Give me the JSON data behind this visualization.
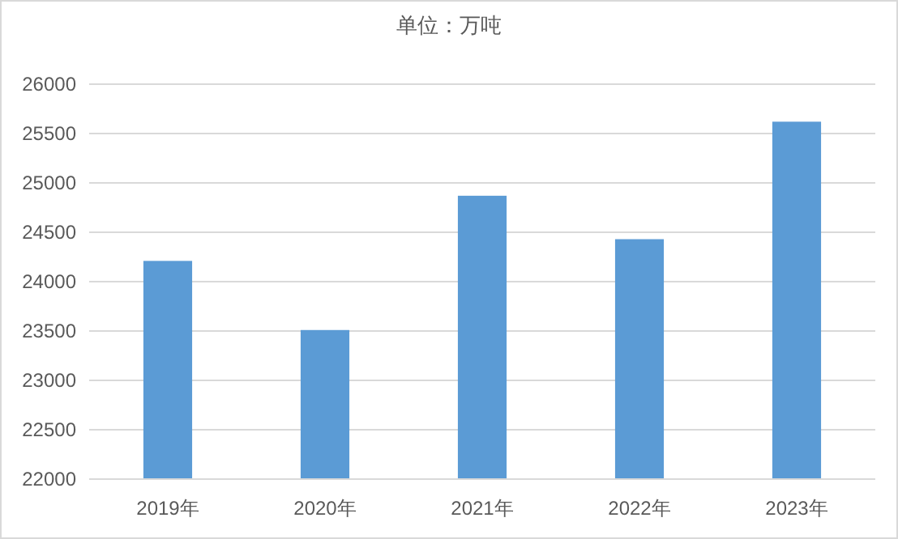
{
  "chart_data": {
    "type": "bar",
    "title": "单位：万吨",
    "categories": [
      "2019年",
      "2020年",
      "2021年",
      "2022年",
      "2023年"
    ],
    "values": [
      24210,
      23510,
      24870,
      24430,
      25620
    ],
    "color": "#5b9bd5",
    "ylim": [
      22000,
      26000
    ],
    "yticks": [
      22000,
      22500,
      23000,
      23500,
      24000,
      24500,
      25000,
      25500,
      26000
    ],
    "grid": "y"
  }
}
